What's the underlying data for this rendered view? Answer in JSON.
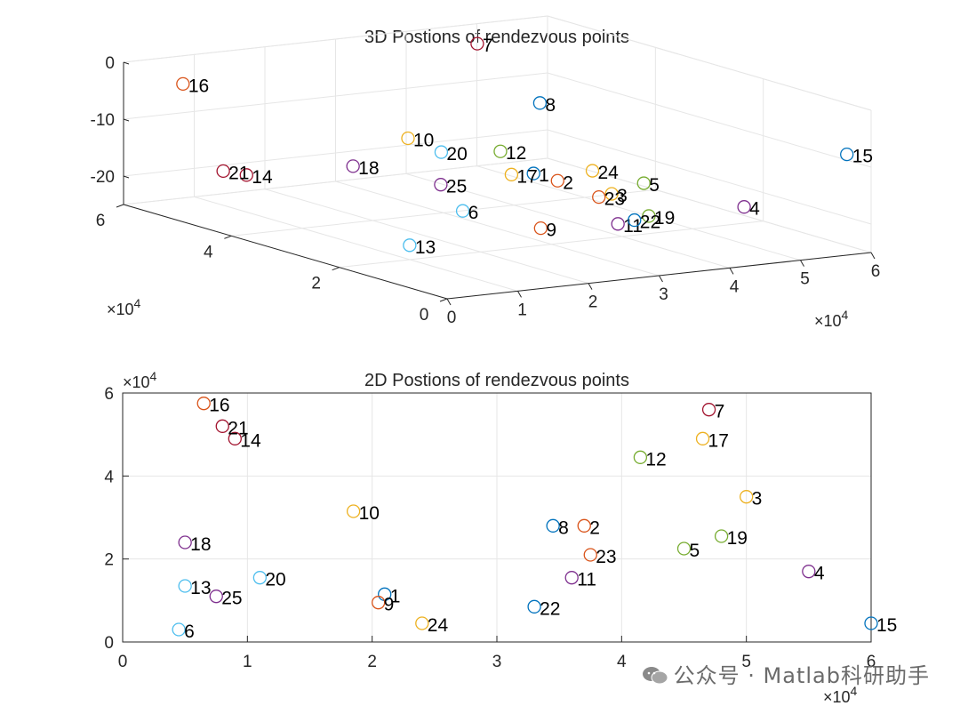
{
  "chart_data": [
    {
      "type": "scatter3d",
      "title": "3D Postions of rendezvous points",
      "xlim": [
        0,
        60000
      ],
      "ylim": [
        0,
        60000
      ],
      "zlim": [
        -25,
        0
      ],
      "x_ticks": [
        "0",
        "1",
        "2",
        "3",
        "4",
        "5",
        "6"
      ],
      "y_ticks": [
        "0",
        "2",
        "4",
        "6"
      ],
      "z_ticks": [
        "-20",
        "-10",
        "0"
      ],
      "x_exponent": "×10",
      "x_exponent_power": "4",
      "y_exponent": "×10",
      "y_exponent_power": "4",
      "grid": true,
      "points": [
        {
          "label": "1",
          "x": 21000,
          "y": 11500,
          "z": -9
        },
        {
          "label": "2",
          "x": 37000,
          "y": 28000,
          "z": -17
        },
        {
          "label": "3",
          "x": 50000,
          "y": 35000,
          "z": -23
        },
        {
          "label": "4",
          "x": 55000,
          "y": 17000,
          "z": -21
        },
        {
          "label": "5",
          "x": 45000,
          "y": 22500,
          "z": -17
        },
        {
          "label": "6",
          "x": 4500,
          "y": 3000,
          "z": -11
        },
        {
          "label": "7",
          "x": 47000,
          "y": 56000,
          "z": -2
        },
        {
          "label": "8",
          "x": 34500,
          "y": 28000,
          "z": -3
        },
        {
          "label": "9",
          "x": 20500,
          "y": 9500,
          "z": -18
        },
        {
          "label": "10",
          "x": 18500,
          "y": 31500,
          "z": -8
        },
        {
          "label": "11",
          "x": 36000,
          "y": 15500,
          "z": -21
        },
        {
          "label": "12",
          "x": 41500,
          "y": 44500,
          "z": -17
        },
        {
          "label": "13",
          "x": 5000,
          "y": 13500,
          "z": -20
        },
        {
          "label": "14",
          "x": 9000,
          "y": 49000,
          "z": -18
        },
        {
          "label": "15",
          "x": 60000,
          "y": 4500,
          "z": -9
        },
        {
          "label": "16",
          "x": 6500,
          "y": 57500,
          "z": -4
        },
        {
          "label": "17",
          "x": 46500,
          "y": 49000,
          "z": -23
        },
        {
          "label": "18",
          "x": 5000,
          "y": 24000,
          "z": -9
        },
        {
          "label": "19",
          "x": 48000,
          "y": 25500,
          "z": -24
        },
        {
          "label": "20",
          "x": 11000,
          "y": 15500,
          "z": -5
        },
        {
          "label": "21",
          "x": 8000,
          "y": 52000,
          "z": -18
        },
        {
          "label": "22",
          "x": 33000,
          "y": 8500,
          "z": -18
        },
        {
          "label": "23",
          "x": 37500,
          "y": 21000,
          "z": -18
        },
        {
          "label": "24",
          "x": 24000,
          "y": 4500,
          "z": -7
        },
        {
          "label": "25",
          "x": 7500,
          "y": 11000,
          "z": -9
        }
      ]
    },
    {
      "type": "scatter",
      "title": "2D Postions of rendezvous points",
      "xlim": [
        0,
        60000
      ],
      "ylim": [
        0,
        60000
      ],
      "x_ticks": [
        "0",
        "1",
        "2",
        "3",
        "4",
        "5",
        "6"
      ],
      "y_ticks": [
        "0",
        "2",
        "4",
        "6"
      ],
      "x_exponent": "×10",
      "x_exponent_power": "4",
      "y_exponent": "×10",
      "y_exponent_power": "4",
      "grid": true
    }
  ],
  "watermark": "公众号 · Matlab科研助手",
  "colors": [
    "#0072BD",
    "#D95319",
    "#EDB120",
    "#7E2F8E",
    "#77AC30",
    "#4DBEEE",
    "#A2142F"
  ]
}
